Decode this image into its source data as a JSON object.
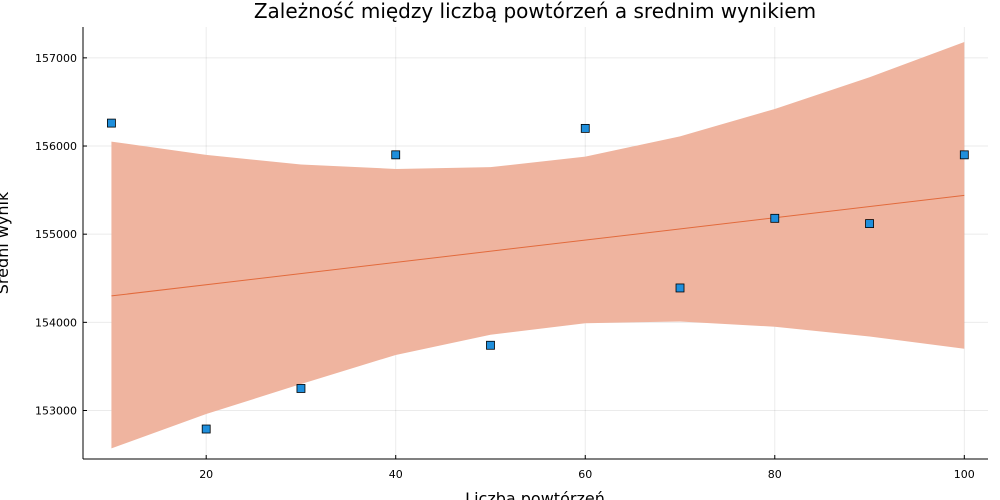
{
  "chart_data": {
    "type": "scatter",
    "title": "Zależność między liczbą powtórzeń a srednim wynikiem",
    "xlabel": "Liczba powtórzeń",
    "ylabel": "Średni wynik",
    "xlim": [
      7,
      102.5
    ],
    "ylim": [
      152450,
      157350
    ],
    "xticks": [
      20,
      40,
      60,
      80,
      100
    ],
    "yticks": [
      153000,
      154000,
      155000,
      156000,
      157000
    ],
    "grid": true,
    "legend": "none",
    "colors": {
      "points": "#1f8fdc",
      "trend": "#e26a3c",
      "band": "#efb49f"
    },
    "points": {
      "x": [
        10,
        20,
        30,
        40,
        50,
        60,
        70,
        80,
        90,
        100
      ],
      "y": [
        156260,
        152790,
        153250,
        155900,
        153740,
        156200,
        154390,
        155180,
        155120,
        155900
      ]
    },
    "trend": {
      "x": [
        10,
        100
      ],
      "y": [
        154300,
        155440
      ]
    },
    "band": {
      "x": [
        10,
        20,
        30,
        40,
        50,
        60,
        70,
        80,
        90,
        100
      ],
      "lower": [
        152570,
        152960,
        153300,
        153630,
        153860,
        153990,
        154010,
        153950,
        153840,
        153700
      ],
      "upper": [
        156050,
        155900,
        155790,
        155740,
        155760,
        155880,
        156110,
        156420,
        156780,
        157180
      ]
    }
  }
}
